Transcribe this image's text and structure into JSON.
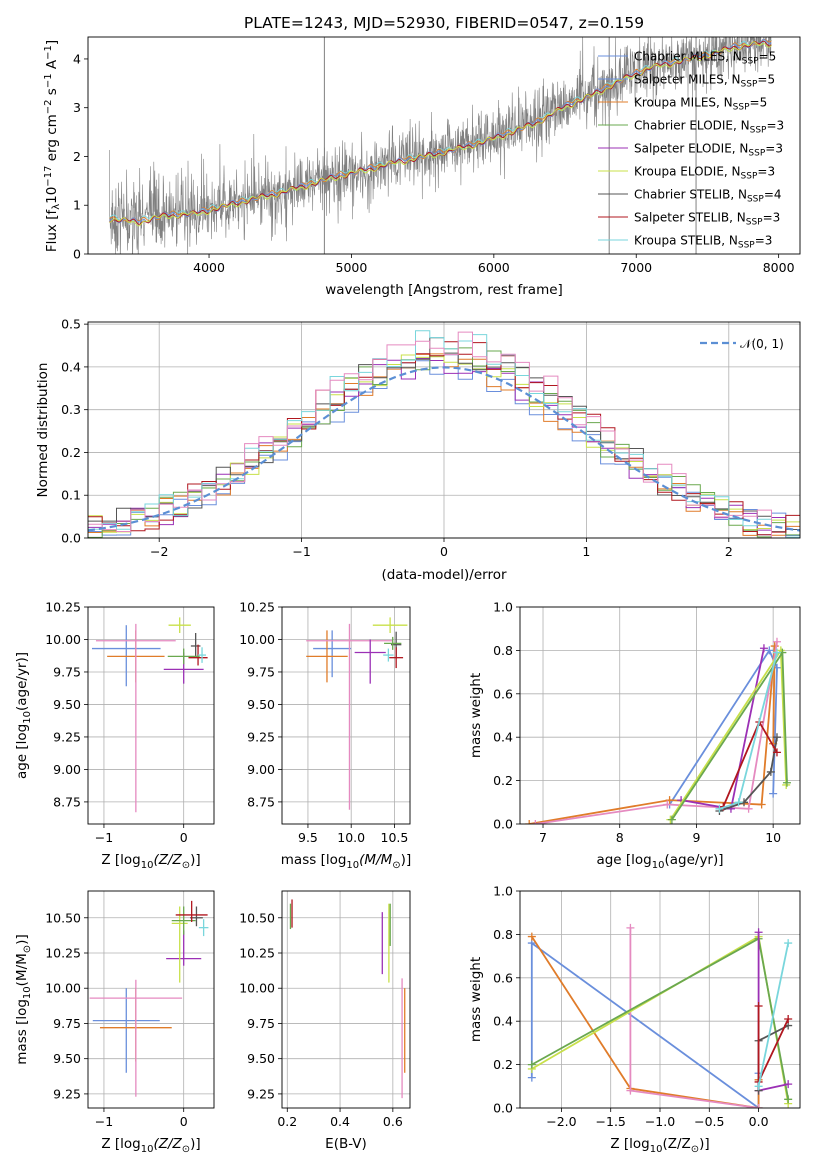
{
  "title": "PLATE=1243, MJD=52930, FIBERID=0547, z=0.159",
  "palette": {
    "Chabrier MILES": "#6a8fdc",
    "Salpeter MILES": "#6a8fdc",
    "Kroupa MILES": "#e07c2a",
    "Chabrier ELODIE": "#6aa84f",
    "Salpeter ELODIE": "#9b30b5",
    "Kroupa ELODIE": "#c8e04a",
    "Chabrier STELIB": "#555555",
    "Salpeter STELIB": "#b0171f",
    "Kroupa STELIB": "#79d6dc",
    "data": "#808080",
    "pink": "#e58ac0",
    "gaussian": "#5b8fd4"
  },
  "legend_models": [
    {
      "label": "Chabrier MILES, N",
      "sub": "SSP",
      "tail": "=5",
      "key": "Chabrier MILES"
    },
    {
      "label": "Salpeter MILES, N",
      "sub": "SSP",
      "tail": "=5",
      "key": "Salpeter MILES"
    },
    {
      "label": "Kroupa MILES, N",
      "sub": "SSP",
      "tail": "=5",
      "key": "Kroupa MILES"
    },
    {
      "label": "Chabrier ELODIE, N",
      "sub": "SSP",
      "tail": "=3",
      "key": "Chabrier ELODIE"
    },
    {
      "label": "Salpeter ELODIE, N",
      "sub": "SSP",
      "tail": "=3",
      "key": "Salpeter ELODIE"
    },
    {
      "label": "Kroupa ELODIE, N",
      "sub": "SSP",
      "tail": "=3",
      "key": "Kroupa ELODIE"
    },
    {
      "label": "Chabrier STELIB, N",
      "sub": "SSP",
      "tail": "=4",
      "key": "Chabrier STELIB"
    },
    {
      "label": "Salpeter STELIB, N",
      "sub": "SSP",
      "tail": "=3",
      "key": "Salpeter STELIB"
    },
    {
      "label": "Kroupa STELIB, N",
      "sub": "SSP",
      "tail": "=3",
      "key": "Kroupa STELIB"
    }
  ],
  "chart_data": [
    {
      "id": "spectrum",
      "type": "line",
      "title": "PLATE=1243, MJD=52930, FIBERID=0547, z=0.159",
      "xlabel": "wavelength [Angstrom, rest frame]",
      "ylabel_parts": [
        "Flux [f",
        "λ",
        "10",
        "−17",
        " erg cm",
        "−2",
        " s",
        "−1",
        " A",
        "−1",
        "]"
      ],
      "xlim": [
        3150,
        8150
      ],
      "ylim": [
        0,
        4.45
      ],
      "xticks": [
        4000,
        5000,
        6000,
        7000,
        8000
      ],
      "yticks": [
        0,
        1,
        2,
        3,
        4
      ],
      "grid": false,
      "legend_position": "upper right",
      "data_trend": {
        "x": [
          3300,
          3500,
          3700,
          3900,
          4100,
          4300,
          4500,
          4700,
          4900,
          5100,
          5300,
          5500,
          5700,
          5900,
          6100,
          6300,
          6500,
          6700,
          6900,
          7100,
          7300,
          7500,
          7700,
          7900
        ],
        "y": [
          0.75,
          0.68,
          0.82,
          0.85,
          1.0,
          1.15,
          1.28,
          1.45,
          1.62,
          1.75,
          1.9,
          2.02,
          2.15,
          2.3,
          2.5,
          2.72,
          3.05,
          3.3,
          3.6,
          3.85,
          3.98,
          4.1,
          4.28,
          4.35
        ]
      },
      "spikes_x": [
        4810,
        6810,
        7420
      ]
    },
    {
      "id": "residuals",
      "type": "step",
      "xlabel": "(data-model)/error",
      "ylabel": "Normed distribution",
      "xlim": [
        -2.5,
        2.5
      ],
      "ylim": [
        0,
        0.505
      ],
      "xticks": [
        -2,
        -1,
        0,
        1,
        2
      ],
      "xtick_labels": [
        "−2",
        "−1",
        "0",
        "1",
        "2"
      ],
      "yticks": [
        0.0,
        0.1,
        0.2,
        0.3,
        0.4,
        0.5
      ],
      "ytick_labels": [
        "0.0",
        "0.1",
        "0.2",
        "0.3",
        "0.4",
        "0.5"
      ],
      "grid": true,
      "legend": "𝒩(0, 1)",
      "legend_position": "upper right",
      "bin_width": 0.1
    },
    {
      "id": "age_vs_Z",
      "type": "errorbar",
      "xlabel_parts": [
        "Z [log",
        "10",
        "(Z/Z",
        "⊙",
        ")]"
      ],
      "ylabel_parts": [
        "age  [log",
        "10",
        "(age/yr)]"
      ],
      "xlim": [
        -1.2,
        0.38
      ],
      "ylim": [
        8.58,
        10.25
      ],
      "xticks": [
        -1,
        0
      ],
      "xtick_labels": [
        "−1",
        "0"
      ],
      "yticks": [
        8.75,
        9.0,
        9.25,
        9.5,
        9.75,
        10.0,
        10.25
      ],
      "ytick_labels": [
        "8.75",
        "9.00",
        "9.25",
        "9.50",
        "9.75",
        "10.00",
        "10.25"
      ],
      "grid": true,
      "points": [
        {
          "model": "Chabrier MILES",
          "x": -0.72,
          "xerr": 0.43,
          "y": 9.93,
          "yerr": [
            0.29,
            0.18
          ]
        },
        {
          "model": "Kroupa MILES",
          "x": -0.6,
          "xerr": 0.36,
          "y": 9.87,
          "yerr": [
            0.2,
            0.2
          ]
        },
        {
          "model": "pink",
          "x": -0.6,
          "xerr": 0.5,
          "y": 9.99,
          "yerr": [
            1.32,
            0.13
          ]
        },
        {
          "model": "Kroupa ELODIE",
          "x": -0.05,
          "xerr": 0.14,
          "y": 10.11,
          "yerr": [
            0.06,
            0.06
          ]
        },
        {
          "model": "Salpeter ELODIE",
          "x": 0.0,
          "xerr": 0.25,
          "y": 9.77,
          "yerr": [
            0.11,
            0.13
          ]
        },
        {
          "model": "Chabrier STELIB",
          "x": 0.15,
          "xerr": 0.06,
          "y": 9.95,
          "yerr": [
            0.08,
            0.1
          ]
        },
        {
          "model": "Salpeter STELIB",
          "x": 0.18,
          "xerr": 0.12,
          "y": 9.86,
          "yerr": [
            0.06,
            0.1
          ]
        },
        {
          "model": "Kroupa STELIB",
          "x": 0.23,
          "xerr": 0.05,
          "y": 9.88,
          "yerr": [
            0.06,
            0.06
          ]
        },
        {
          "model": "Chabrier ELODIE",
          "x": 0.0,
          "xerr": 0.2,
          "y": 9.87,
          "yerr": [
            0.06,
            0.06
          ]
        }
      ]
    },
    {
      "id": "age_vs_mass",
      "type": "errorbar",
      "xlabel_parts": [
        "mass [log",
        "10",
        "(M/M",
        "⊙",
        ")]"
      ],
      "xlim": [
        9.2,
        10.68
      ],
      "ylim": [
        8.58,
        10.25
      ],
      "xticks": [
        9.5,
        10.0,
        10.5
      ],
      "xtick_labels": [
        "9.5",
        "10.0",
        "10.5"
      ],
      "yticks": [
        8.75,
        9.0,
        9.25,
        9.5,
        9.75,
        10.0,
        10.25
      ],
      "ytick_labels": [
        "8.75",
        "9.00",
        "9.25",
        "9.50",
        "9.75",
        "10.00",
        "10.25"
      ],
      "grid": true,
      "points": [
        {
          "model": "Chabrier MILES",
          "x": 9.78,
          "xerr": 0.22,
          "y": 9.93,
          "yerr": [
            0.22,
            0.14
          ]
        },
        {
          "model": "Kroupa MILES",
          "x": 9.72,
          "xerr": 0.24,
          "y": 9.87,
          "yerr": [
            0.2,
            0.2
          ]
        },
        {
          "model": "pink",
          "x": 9.98,
          "xerr": 0.5,
          "y": 9.99,
          "yerr": [
            1.3,
            0.13
          ]
        },
        {
          "model": "Kroupa ELODIE",
          "x": 10.45,
          "xerr": 0.2,
          "y": 10.11,
          "yerr": [
            0.06,
            0.06
          ]
        },
        {
          "model": "Salpeter ELODIE",
          "x": 10.22,
          "xerr": 0.18,
          "y": 9.9,
          "yerr": [
            0.24,
            0.1
          ]
        },
        {
          "model": "Chabrier STELIB",
          "x": 10.52,
          "xerr": 0.06,
          "y": 9.96,
          "yerr": [
            0.1,
            0.1
          ]
        },
        {
          "model": "Salpeter STELIB",
          "x": 10.52,
          "xerr": 0.08,
          "y": 9.86,
          "yerr": [
            0.08,
            0.08
          ]
        },
        {
          "model": "Kroupa STELIB",
          "x": 10.43,
          "xerr": 0.06,
          "y": 9.88,
          "yerr": [
            0.05,
            0.05
          ]
        },
        {
          "model": "Chabrier ELODIE",
          "x": 10.48,
          "xerr": 0.1,
          "y": 9.97,
          "yerr": [
            0.05,
            0.05
          ]
        }
      ]
    },
    {
      "id": "weight_vs_age",
      "type": "line",
      "xlabel_parts": [
        "age  [log",
        "10",
        "(age/yr)]"
      ],
      "ylabel": "mass weight",
      "xlim": [
        6.7,
        10.35
      ],
      "ylim": [
        0,
        1.0
      ],
      "xticks": [
        7,
        8,
        9,
        10
      ],
      "xtick_labels": [
        "7",
        "8",
        "9",
        "10"
      ],
      "yticks": [
        0.0,
        0.2,
        0.4,
        0.6,
        0.8,
        1.0
      ],
      "ytick_labels": [
        "0.0",
        "0.2",
        "0.4",
        "0.6",
        "0.8",
        "1.0"
      ],
      "grid": true,
      "series": [
        {
          "model": "Chabrier MILES",
          "x": [
            8.65,
            9.95,
            10.05,
            10.0
          ],
          "y": [
            0.09,
            0.8,
            0.72,
            0.14
          ]
        },
        {
          "model": "Kroupa MILES",
          "x": [
            6.82,
            8.65,
            9.85,
            10.02,
            10.0
          ],
          "y": [
            0.0,
            0.11,
            0.09,
            0.82,
            0.37
          ]
        },
        {
          "model": "pink",
          "x": [
            6.9,
            8.62,
            9.68,
            10.05
          ],
          "y": [
            0.0,
            0.09,
            0.07,
            0.84
          ]
        },
        {
          "model": "Salpeter ELODIE",
          "x": [
            8.8,
            9.45,
            9.88
          ],
          "y": [
            0.11,
            0.07,
            0.81
          ]
        },
        {
          "model": "Kroupa ELODIE",
          "x": [
            8.66,
            10.1,
            10.17
          ],
          "y": [
            0.02,
            0.8,
            0.18
          ]
        },
        {
          "model": "Chabrier ELODIE",
          "x": [
            8.68,
            10.12,
            10.18
          ],
          "y": [
            0.02,
            0.79,
            0.19
          ]
        },
        {
          "model": "Chabrier STELIB",
          "x": [
            9.3,
            9.62,
            9.97,
            10.05
          ],
          "y": [
            0.06,
            0.1,
            0.24,
            0.4
          ]
        },
        {
          "model": "Salpeter STELIB",
          "x": [
            9.35,
            9.82,
            10.05
          ],
          "y": [
            0.08,
            0.47,
            0.33
          ]
        },
        {
          "model": "Kroupa STELIB",
          "x": [
            9.3,
            9.55,
            10.05
          ],
          "y": [
            0.07,
            0.1,
            0.79
          ]
        }
      ]
    },
    {
      "id": "mass_vs_Z",
      "type": "errorbar",
      "xlabel_parts": [
        "Z [log",
        "10",
        "(Z/Z",
        "⊙",
        ")]"
      ],
      "ylabel_parts": [
        "mass [log",
        "10",
        "(M/M",
        "⊙",
        ")]"
      ],
      "xlim": [
        -1.2,
        0.38
      ],
      "ylim": [
        9.15,
        10.69
      ],
      "xticks": [
        -1,
        0
      ],
      "xtick_labels": [
        "−1",
        "0"
      ],
      "yticks": [
        9.25,
        9.5,
        9.75,
        10.0,
        10.25,
        10.5
      ],
      "ytick_labels": [
        "9.25",
        "9.50",
        "9.75",
        "10.00",
        "10.25",
        "10.50"
      ],
      "grid": true,
      "points": [
        {
          "model": "Chabrier MILES",
          "x": -0.72,
          "xerr": 0.42,
          "y": 9.77,
          "yerr": [
            0.37,
            0.23
          ]
        },
        {
          "model": "Kroupa MILES",
          "x": -0.6,
          "xerr": 0.45,
          "y": 9.72,
          "yerr": [
            0.24,
            0.28
          ]
        },
        {
          "model": "pink",
          "x": -0.6,
          "xerr": 0.58,
          "y": 9.93,
          "yerr": [
            0.7,
            0.13
          ]
        },
        {
          "model": "Salpeter ELODIE",
          "x": 0.0,
          "xerr": 0.22,
          "y": 10.21,
          "yerr": [
            0.05,
            0.2
          ]
        },
        {
          "model": "Kroupa ELODIE",
          "x": -0.05,
          "xerr": 0.1,
          "y": 10.46,
          "yerr": [
            0.42,
            0.12
          ]
        },
        {
          "model": "Chabrier ELODIE",
          "x": 0.0,
          "xerr": 0.15,
          "y": 10.48,
          "yerr": [
            0.1,
            0.1
          ]
        },
        {
          "model": "Chabrier STELIB",
          "x": 0.16,
          "xerr": 0.08,
          "y": 10.5,
          "yerr": [
            0.06,
            0.08
          ]
        },
        {
          "model": "Salpeter STELIB",
          "x": 0.1,
          "xerr": 0.2,
          "y": 10.52,
          "yerr": [
            0.05,
            0.1
          ]
        },
        {
          "model": "Kroupa STELIB",
          "x": 0.25,
          "xerr": 0.06,
          "y": 10.43,
          "yerr": [
            0.06,
            0.06
          ]
        }
      ]
    },
    {
      "id": "mass_vs_EBV",
      "type": "errorbar",
      "xlabel": "E(B-V)",
      "xlim": [
        0.18,
        0.665
      ],
      "ylim": [
        9.15,
        10.69
      ],
      "xticks": [
        0.2,
        0.4,
        0.6
      ],
      "xtick_labels": [
        "0.2",
        "0.4",
        "0.6"
      ],
      "yticks": [
        9.25,
        9.5,
        9.75,
        10.0,
        10.25,
        10.5
      ],
      "ytick_labels": [
        "9.25",
        "9.50",
        "9.75",
        "10.00",
        "10.25",
        "10.50"
      ],
      "grid": true,
      "points": [
        {
          "model": "Chabrier ELODIE",
          "x": 0.212,
          "xerr": 0.0,
          "y": 10.52,
          "yerr": [
            0.1,
            0.08
          ]
        },
        {
          "model": "Salpeter STELIB",
          "x": 0.218,
          "xerr": 0.0,
          "y": 10.53,
          "yerr": [
            0.1,
            0.1
          ]
        },
        {
          "model": "Salpeter ELODIE",
          "x": 0.56,
          "xerr": 0.0,
          "y": 10.32,
          "yerr": [
            0.22,
            0.22
          ]
        },
        {
          "model": "Kroupa ELODIE",
          "x": 0.585,
          "xerr": 0.0,
          "y": 10.32,
          "yerr": [
            0.28,
            0.28
          ]
        },
        {
          "model": "Chabrier ELODIE",
          "x": 0.59,
          "xerr": 0.0,
          "y": 10.45,
          "yerr": [
            0.15,
            0.15
          ]
        },
        {
          "model": "pink",
          "x": 0.635,
          "xerr": 0.0,
          "y": 9.65,
          "yerr": [
            0.43,
            0.42
          ]
        },
        {
          "model": "Kroupa MILES",
          "x": 0.645,
          "xerr": 0.0,
          "y": 9.75,
          "yerr": [
            0.35,
            0.25
          ]
        }
      ]
    },
    {
      "id": "weight_vs_Z",
      "type": "line",
      "xlabel_parts": [
        "Z [log",
        "10",
        "(Z/Z",
        "⊙",
        ")]"
      ],
      "ylabel": "mass weight",
      "xlim": [
        -2.42,
        0.42
      ],
      "ylim": [
        0,
        1.0
      ],
      "xticks": [
        -2.0,
        -1.5,
        -1.0,
        -0.5,
        0.0
      ],
      "xtick_labels": [
        "−2.0",
        "−1.5",
        "−1.0",
        "−0.5",
        "0.0"
      ],
      "yticks": [
        0.0,
        0.2,
        0.4,
        0.6,
        0.8,
        1.0
      ],
      "ytick_labels": [
        "0.0",
        "0.2",
        "0.4",
        "0.6",
        "0.8",
        "1.0"
      ],
      "grid": true,
      "series": [
        {
          "model": "Chabrier MILES",
          "x": [
            -2.3,
            -2.3,
            0.0,
            0.0
          ],
          "y": [
            0.14,
            0.76,
            0.0,
            0.16
          ]
        },
        {
          "model": "Kroupa MILES",
          "x": [
            -2.3,
            -1.3,
            0.0,
            0.0
          ],
          "y": [
            0.79,
            0.09,
            0.0,
            0.13
          ]
        },
        {
          "model": "pink",
          "x": [
            -1.3,
            -1.3,
            0.0
          ],
          "y": [
            0.83,
            0.08,
            0.0
          ]
        },
        {
          "model": "Kroupa ELODIE",
          "x": [
            -2.3,
            0.0,
            0.3
          ],
          "y": [
            0.18,
            0.79,
            0.02
          ]
        },
        {
          "model": "Chabrier ELODIE",
          "x": [
            -2.3,
            0.0,
            0.3
          ],
          "y": [
            0.2,
            0.78,
            0.04
          ]
        },
        {
          "model": "Salpeter ELODIE",
          "x": [
            0.0,
            0.0,
            0.3
          ],
          "y": [
            0.81,
            0.08,
            0.11
          ]
        },
        {
          "model": "Chabrier STELIB",
          "x": [
            0.0,
            0.0,
            0.3
          ],
          "y": [
            0.08,
            0.31,
            0.38
          ]
        },
        {
          "model": "Salpeter STELIB",
          "x": [
            0.0,
            0.0,
            0.3
          ],
          "y": [
            0.47,
            0.12,
            0.41
          ]
        },
        {
          "model": "Kroupa STELIB",
          "x": [
            0.0,
            0.3
          ],
          "y": [
            0.1,
            0.76
          ]
        }
      ]
    }
  ]
}
